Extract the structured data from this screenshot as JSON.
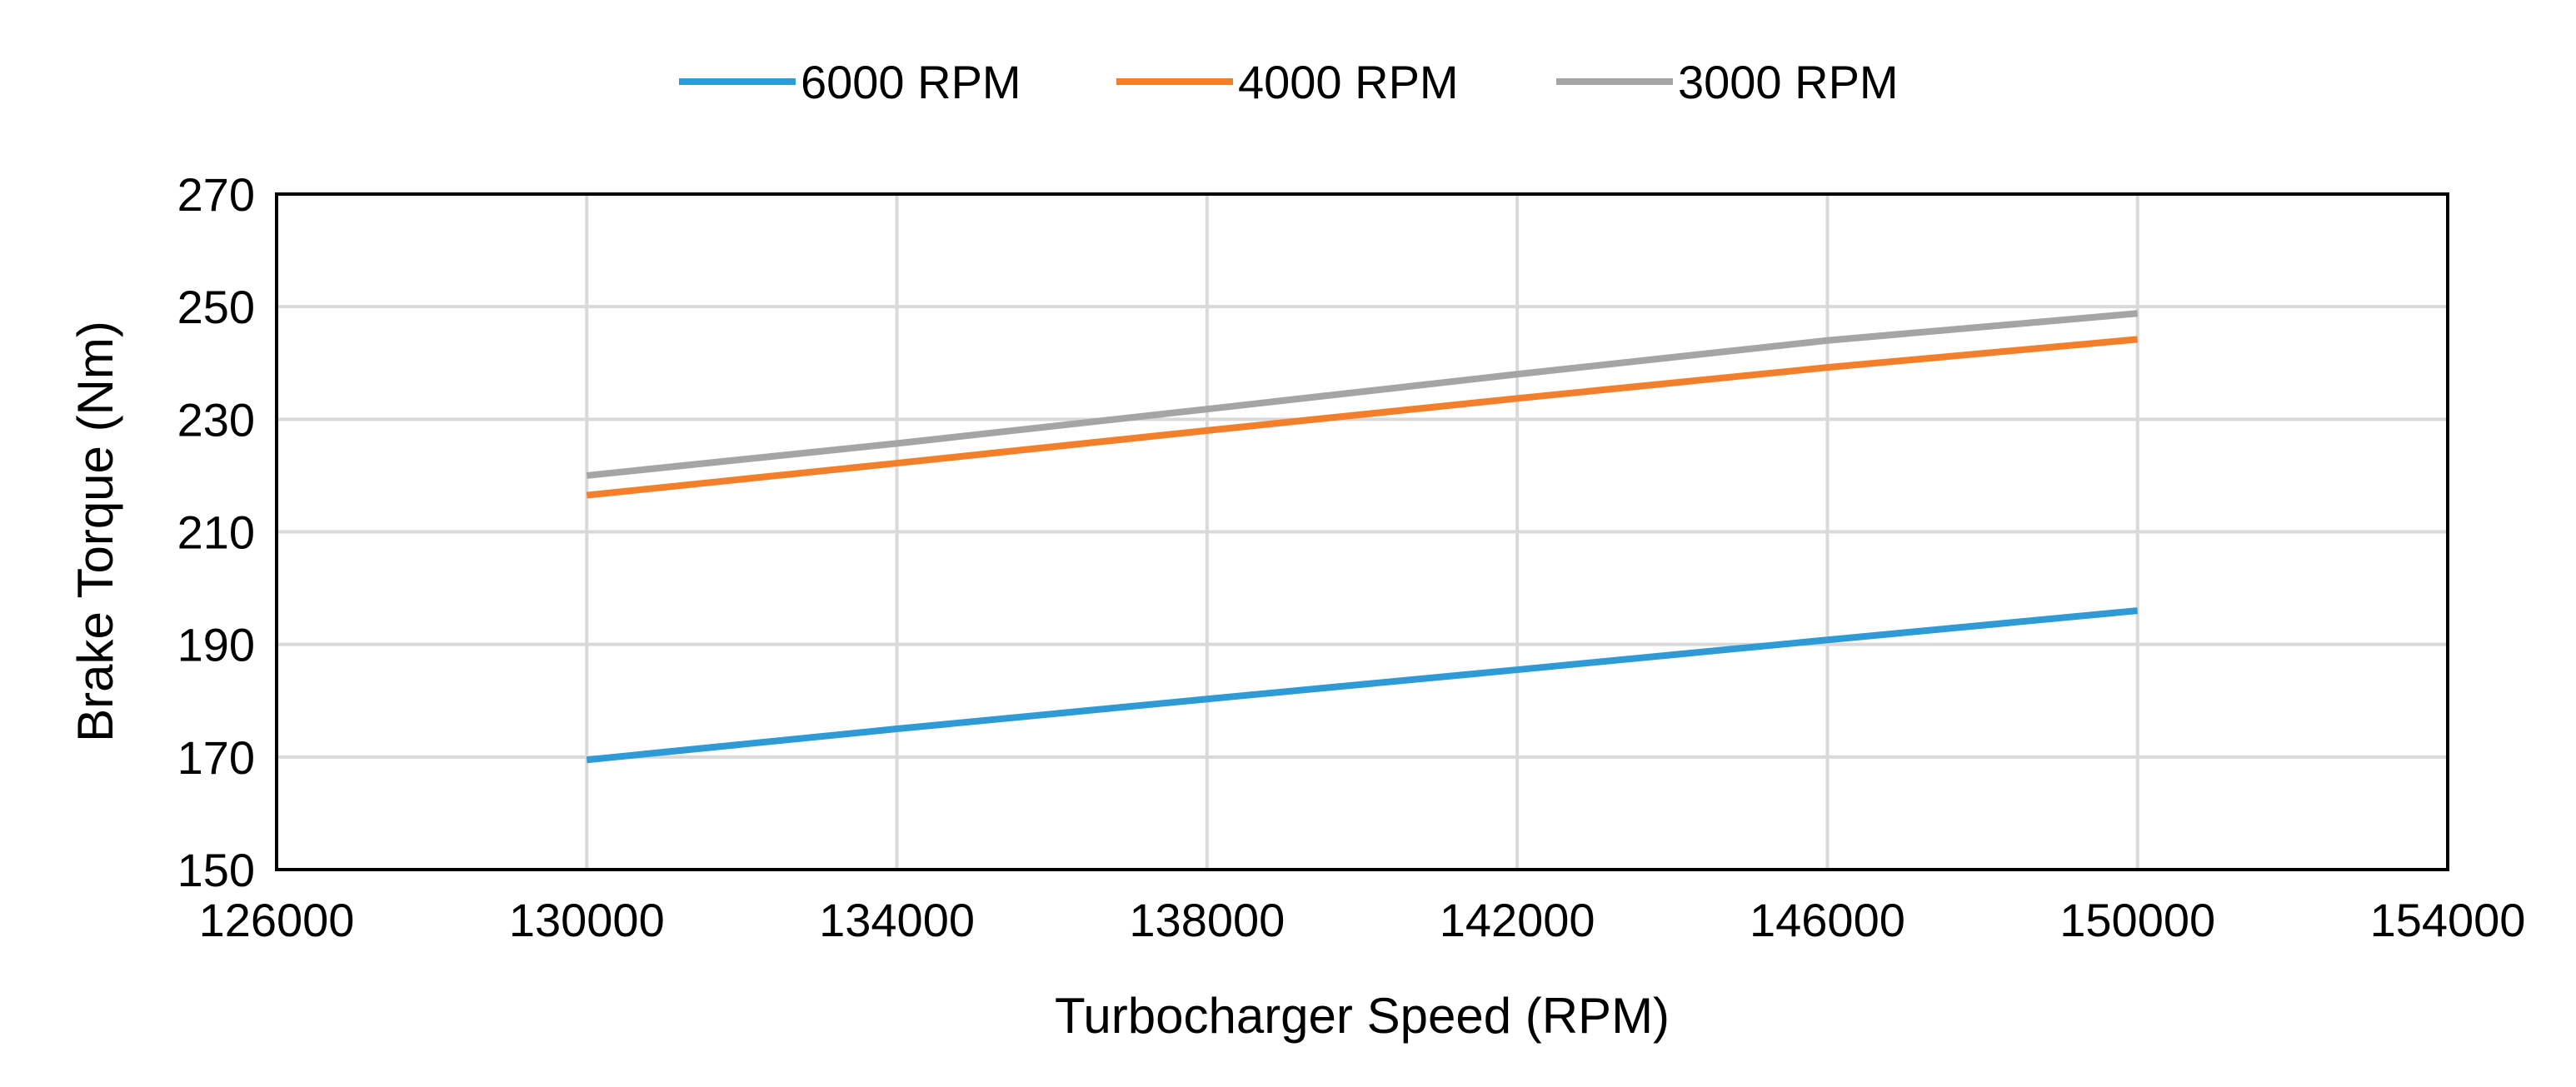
{
  "chart_data": {
    "type": "line",
    "title": "",
    "xlabel": "Turbocharger Speed (RPM)",
    "ylabel": "Brake Torque (Nm)",
    "xlim": [
      126000,
      154000
    ],
    "ylim": [
      150,
      270
    ],
    "xticks": [
      126000,
      130000,
      134000,
      138000,
      142000,
      146000,
      150000,
      154000
    ],
    "yticks": [
      150,
      170,
      190,
      210,
      230,
      250,
      270
    ],
    "grid": true,
    "legend_position": "top",
    "series": [
      {
        "name": "6000 RPM",
        "color": "#2E9BD6",
        "x": [
          130000,
          134000,
          138000,
          142000,
          146000,
          150000
        ],
        "y": [
          169.5,
          175.0,
          180.3,
          185.5,
          190.8,
          196.0
        ]
      },
      {
        "name": "4000 RPM",
        "color": "#F47F2A",
        "x": [
          130000,
          134000,
          138000,
          142000,
          146000,
          150000
        ],
        "y": [
          216.5,
          222.2,
          228.0,
          233.7,
          239.2,
          244.2
        ]
      },
      {
        "name": "3000 RPM",
        "color": "#A5A5A5",
        "x": [
          130000,
          134000,
          138000,
          142000,
          146000,
          150000
        ],
        "y": [
          220.0,
          225.7,
          231.8,
          238.0,
          244.0,
          248.8
        ]
      }
    ]
  }
}
